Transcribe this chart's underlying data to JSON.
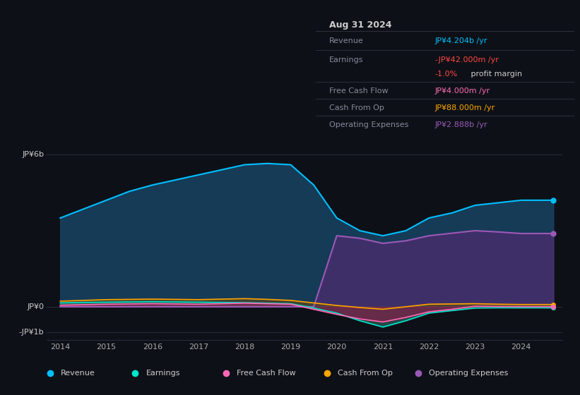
{
  "bg_color": "#0d1117",
  "ylabel_6b": "JP¥6b",
  "ylabel_0": "JP¥0",
  "ylabel_neg1b": "-JP¥1b",
  "colors": {
    "revenue": "#00bfff",
    "earnings": "#00e5cc",
    "free_cash_flow": "#ff69b4",
    "cash_from_op": "#ffa500",
    "operating_expenses": "#9b59b6"
  },
  "fill_colors": {
    "revenue": "#1a4a6e",
    "earnings": "#2d6b5e",
    "free_cash_flow": "#8b1a4a",
    "cash_from_op": "#5e4a1a",
    "operating_expenses": "#4a2d6e"
  },
  "info_box": {
    "date": "Aug 31 2024",
    "revenue_label": "Revenue",
    "revenue_value": "JP¥4.204b",
    "revenue_unit": " /yr",
    "earnings_label": "Earnings",
    "earnings_value": "-JP¥42.000m",
    "earnings_unit": " /yr",
    "earnings_margin": "-1.0%",
    "earnings_margin_text": " profit margin",
    "fcf_label": "Free Cash Flow",
    "fcf_value": "JP¥4.000m",
    "fcf_unit": " /yr",
    "cfop_label": "Cash From Op",
    "cfop_value": "JP¥88.000m",
    "cfop_unit": " /yr",
    "opex_label": "Operating Expenses",
    "opex_value": "JP¥2.888b",
    "opex_unit": " /yr"
  },
  "legend": [
    {
      "label": "Revenue",
      "color": "#00bfff"
    },
    {
      "label": "Earnings",
      "color": "#00e5cc"
    },
    {
      "label": "Free Cash Flow",
      "color": "#ff69b4"
    },
    {
      "label": "Cash From Op",
      "color": "#ffa500"
    },
    {
      "label": "Operating Expenses",
      "color": "#9b59b6"
    }
  ],
  "x_years": [
    2014.0,
    2014.5,
    2015.0,
    2015.5,
    2016.0,
    2016.5,
    2017.0,
    2017.5,
    2018.0,
    2018.5,
    2019.0,
    2019.5,
    2020.0,
    2020.5,
    2021.0,
    2021.5,
    2022.0,
    2022.5,
    2023.0,
    2023.5,
    2024.0,
    2024.7
  ],
  "revenue": [
    3.5,
    3.85,
    4.2,
    4.55,
    4.8,
    5.0,
    5.2,
    5.4,
    5.6,
    5.65,
    5.6,
    4.8,
    3.5,
    3.0,
    2.8,
    3.0,
    3.5,
    3.7,
    4.0,
    4.1,
    4.2,
    4.2
  ],
  "earnings": [
    0.15,
    0.17,
    0.18,
    0.19,
    0.2,
    0.19,
    0.18,
    0.17,
    0.16,
    0.14,
    0.12,
    -0.05,
    -0.25,
    -0.55,
    -0.8,
    -0.55,
    -0.25,
    -0.15,
    -0.05,
    -0.04,
    -0.042,
    -0.042
  ],
  "free_cash_flow": [
    0.06,
    0.08,
    0.1,
    0.11,
    0.12,
    0.11,
    0.1,
    0.12,
    0.14,
    0.12,
    0.1,
    -0.1,
    -0.3,
    -0.48,
    -0.6,
    -0.42,
    -0.2,
    -0.1,
    0.02,
    0.01,
    0.004,
    0.004
  ],
  "cash_from_op": [
    0.22,
    0.25,
    0.28,
    0.29,
    0.3,
    0.29,
    0.28,
    0.3,
    0.32,
    0.29,
    0.25,
    0.15,
    0.05,
    -0.03,
    -0.1,
    0.0,
    0.1,
    0.11,
    0.12,
    0.1,
    0.088,
    0.088
  ],
  "operating_expenses": [
    0,
    0,
    0,
    0,
    0,
    0,
    0,
    0,
    0,
    0,
    0,
    0,
    2.8,
    2.7,
    2.5,
    2.6,
    2.8,
    2.9,
    3.0,
    2.95,
    2.888,
    2.888
  ],
  "xlim": [
    2013.7,
    2024.9
  ],
  "ylim": [
    -1.3,
    6.8
  ],
  "xticks": [
    2014,
    2015,
    2016,
    2017,
    2018,
    2019,
    2020,
    2021,
    2022,
    2023,
    2024
  ],
  "yticks_vals": [
    6.0,
    0.0,
    -1.0
  ],
  "yticks_labels": [
    "JP¥6b",
    "JP¥0",
    "-JP¥1b"
  ]
}
